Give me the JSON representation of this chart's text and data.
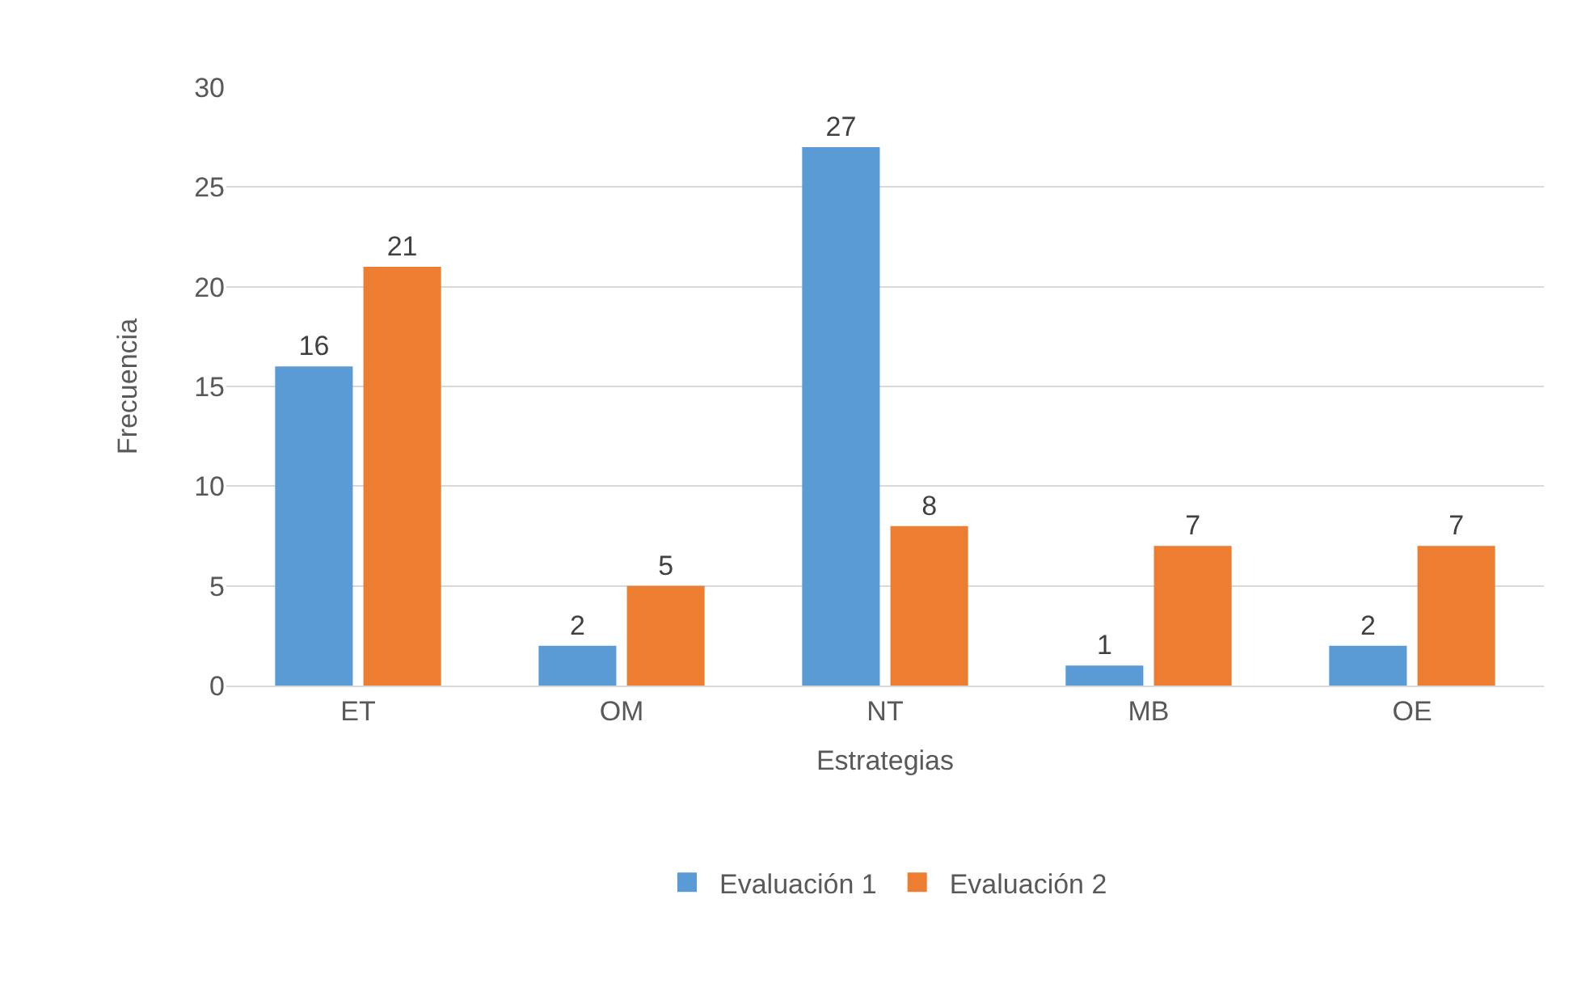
{
  "chart_data": {
    "type": "bar",
    "xlabel": "Estrategias",
    "ylabel": "Frecuencia",
    "categories": [
      "ET",
      "OM",
      "NT",
      "MB",
      "OE"
    ],
    "series": [
      {
        "name": "Evaluación 1",
        "color": "#5b9bd5",
        "values": [
          16,
          2,
          27,
          1,
          2
        ]
      },
      {
        "name": "Evaluación 2",
        "color": "#ed7d31",
        "values": [
          21,
          5,
          8,
          7,
          7
        ]
      }
    ],
    "ylim": [
      0,
      30
    ],
    "yticks": [
      0,
      5,
      10,
      15,
      20,
      25,
      30
    ],
    "grid": "y",
    "legend": "bottom",
    "data_labels": true
  }
}
